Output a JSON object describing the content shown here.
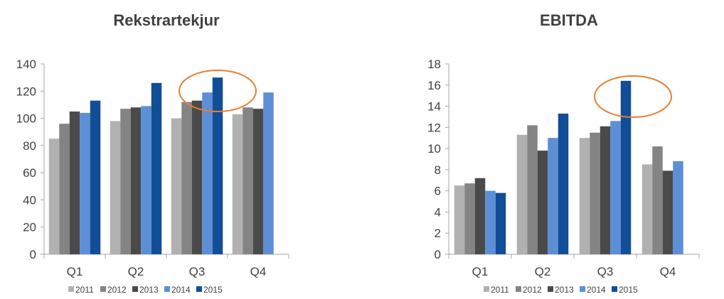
{
  "chart_data": [
    {
      "type": "bar",
      "title": "Rekstrartekjur",
      "categories": [
        "Q1",
        "Q2",
        "Q3",
        "Q4"
      ],
      "series": [
        {
          "name": "2011",
          "values": [
            85,
            98,
            100,
            103
          ]
        },
        {
          "name": "2012",
          "values": [
            96,
            107,
            112,
            108
          ]
        },
        {
          "name": "2013",
          "values": [
            105,
            108,
            113,
            107
          ]
        },
        {
          "name": "2014",
          "values": [
            104,
            109,
            119,
            119
          ]
        },
        {
          "name": "2015",
          "values": [
            113,
            126,
            130,
            null
          ]
        }
      ],
      "ylim": [
        0,
        140
      ],
      "yticks": [
        "0",
        "20",
        "40",
        "60",
        "80",
        "100",
        "120",
        "140"
      ],
      "grid": false,
      "legend": "bottom",
      "highlight_category": "Q3",
      "xlabel": "",
      "ylabel": ""
    },
    {
      "type": "bar",
      "title": "EBITDA",
      "categories": [
        "Q1",
        "Q2",
        "Q3",
        "Q4"
      ],
      "series": [
        {
          "name": "2011",
          "values": [
            6.5,
            11.3,
            11.0,
            8.5
          ]
        },
        {
          "name": "2012",
          "values": [
            6.7,
            12.2,
            11.5,
            10.2
          ]
        },
        {
          "name": "2013",
          "values": [
            7.2,
            9.8,
            12.1,
            7.9
          ]
        },
        {
          "name": "2014",
          "values": [
            6.0,
            11.0,
            12.6,
            8.8
          ]
        },
        {
          "name": "2015",
          "values": [
            5.8,
            13.3,
            16.4,
            null
          ]
        }
      ],
      "ylim": [
        0,
        18
      ],
      "yticks": [
        "0",
        "2",
        "4",
        "6",
        "8",
        "10",
        "12",
        "14",
        "16",
        "18"
      ],
      "grid": false,
      "legend": "bottom",
      "highlight_category": "Q3",
      "xlabel": "",
      "ylabel": ""
    }
  ],
  "colors": {
    "2011": "#B1B1B1",
    "2012": "#848484",
    "2013": "#4A4A4A",
    "2014": "#5C8FD6",
    "2015": "#124E97",
    "highlight": "#E97E2F",
    "axis": "#A6A6A6",
    "text": "#404040"
  }
}
